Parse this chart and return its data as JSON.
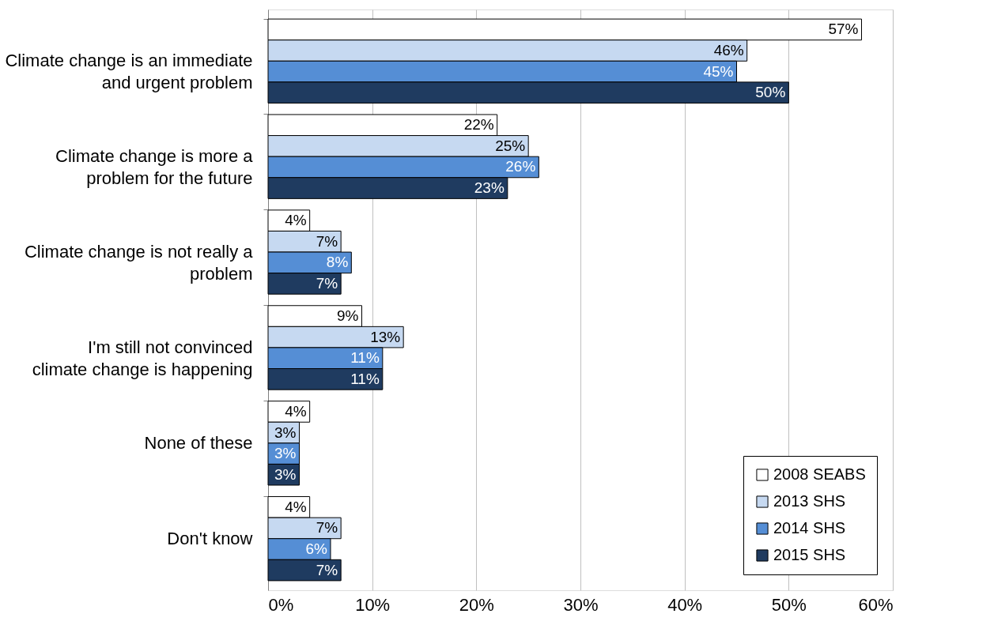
{
  "chart_data": {
    "type": "bar",
    "orientation": "horizontal",
    "categories": [
      "Climate change is an immediate and urgent problem",
      "Climate change is more a problem for the future",
      "Climate change is not really a problem",
      "I'm still not convinced climate change is happening",
      "None of these",
      "Don't know"
    ],
    "series": [
      {
        "name": "2008 SEABS",
        "color": "#ffffff",
        "values": [
          57,
          22,
          4,
          9,
          4,
          4
        ],
        "value_labels": [
          "57%",
          "22%",
          "4%",
          "9%",
          "4%",
          "4%"
        ]
      },
      {
        "name": "2013 SHS",
        "color": "#c6d9f1",
        "values": [
          46,
          25,
          7,
          13,
          3,
          7
        ],
        "value_labels": [
          "46%",
          "25%",
          "7%",
          "13%",
          "3%",
          "7%"
        ]
      },
      {
        "name": "2014 SHS",
        "color": "#558ed5",
        "values": [
          45,
          26,
          8,
          11,
          3,
          6
        ],
        "value_labels": [
          "45%",
          "26%",
          "8%",
          "11%",
          "3%",
          "6%"
        ]
      },
      {
        "name": "2015 SHS",
        "color": "#1f3b60",
        "values": [
          50,
          23,
          7,
          11,
          3,
          7
        ],
        "value_labels": [
          "50%",
          "23%",
          "7%",
          "11%",
          "3%",
          "7%"
        ]
      }
    ],
    "xlim": [
      0,
      60
    ],
    "xticks": [
      {
        "value": 0,
        "label": "0%"
      },
      {
        "value": 10,
        "label": "10%"
      },
      {
        "value": 20,
        "label": "20%"
      },
      {
        "value": 30,
        "label": "30%"
      },
      {
        "value": 40,
        "label": "40%"
      },
      {
        "value": 50,
        "label": "50%"
      },
      {
        "value": 60,
        "label": "60%"
      }
    ],
    "grid": "x",
    "legend": "bottom right"
  }
}
